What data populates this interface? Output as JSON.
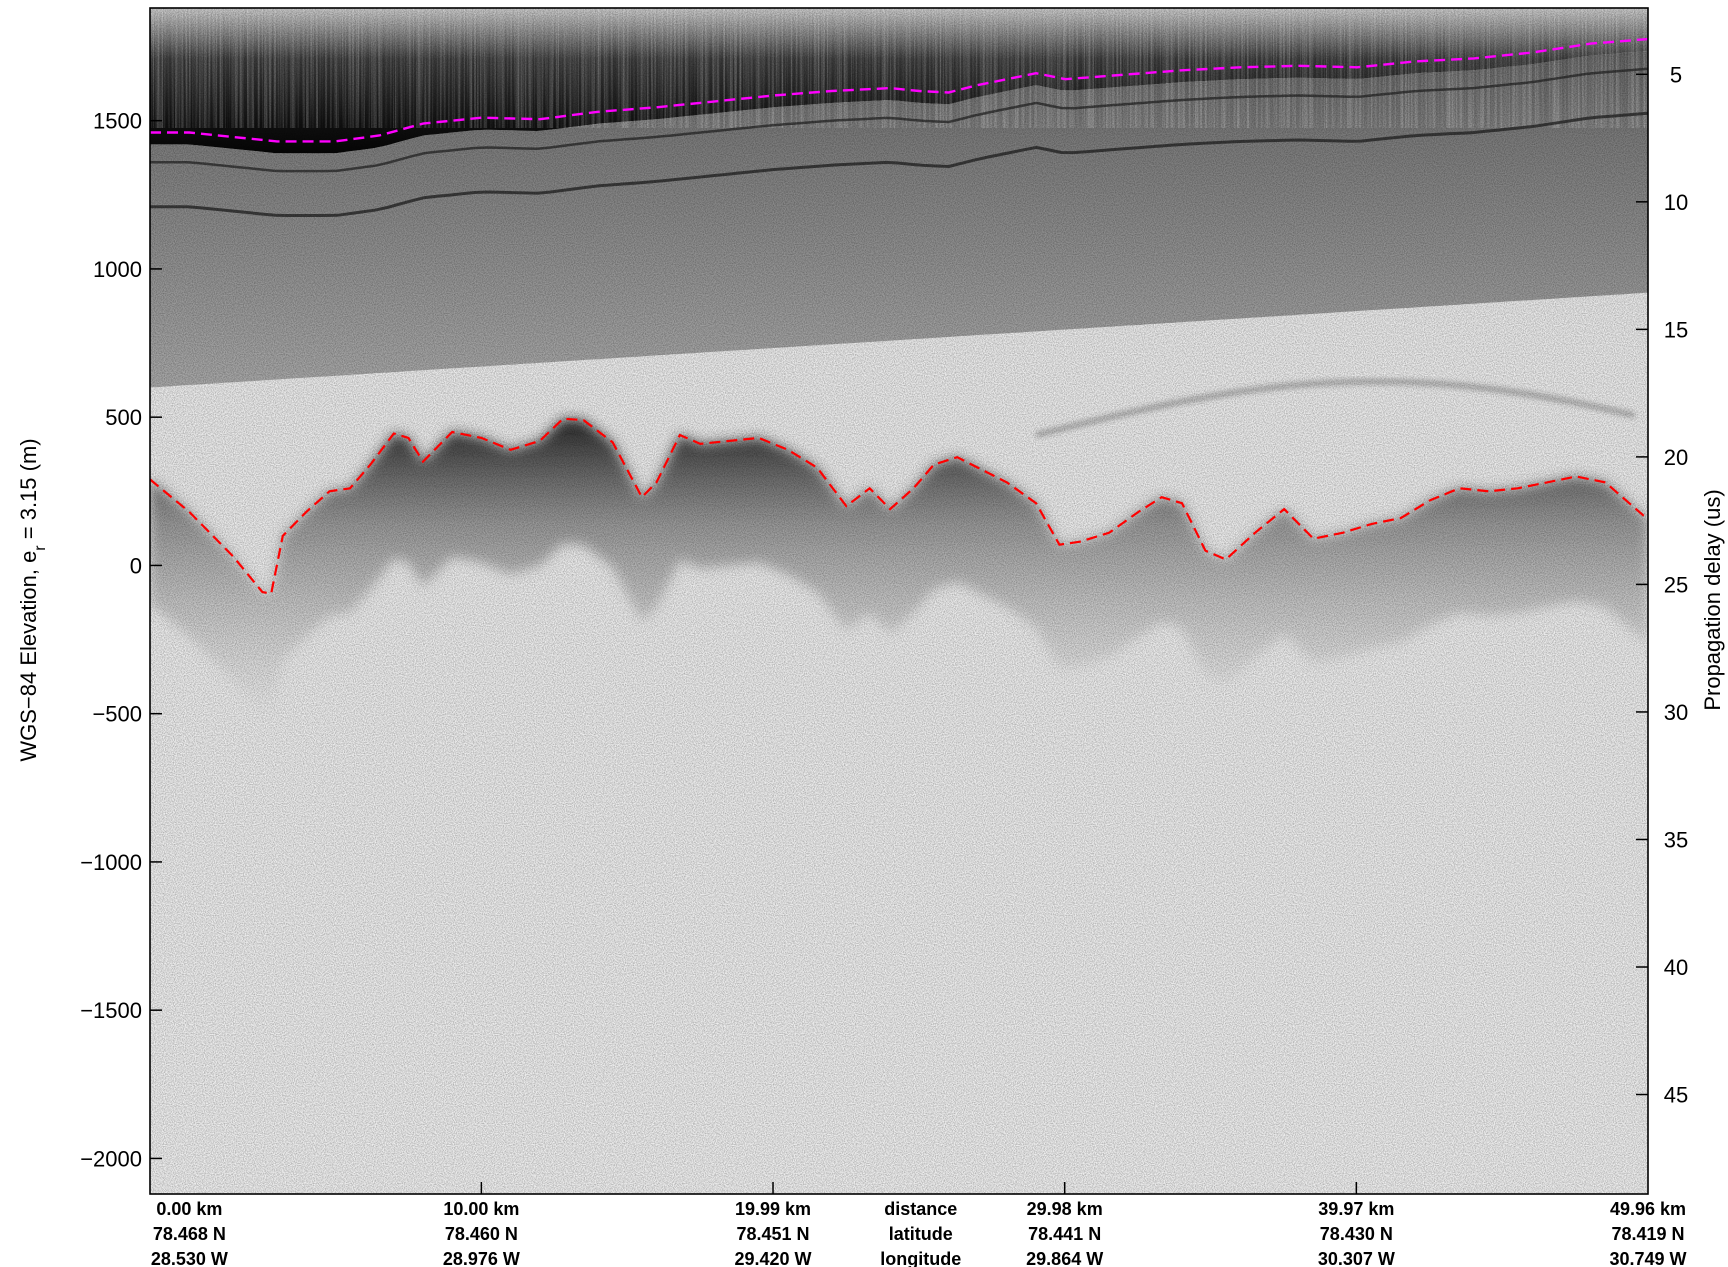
{
  "chart_data": {
    "type": "radargram",
    "ylabel_left": "WGS−84 Elevation, e",
    "ylabel_left_sub": "r",
    "ylabel_left_tail": " = 3.15 (m)",
    "ylabel_right": "Propagation delay (us)",
    "ylim_left": [
      -2120,
      1880
    ],
    "yticks_left": [
      1500,
      1000,
      500,
      0,
      -500,
      -1000,
      -1500,
      -2000
    ],
    "ytick_labels_left": [
      "1500",
      "1000",
      "500",
      "0",
      "−500",
      "−1000",
      "−1500",
      "−2000"
    ],
    "yticks_right": [
      5,
      10,
      15,
      20,
      25,
      30,
      35,
      40,
      45
    ],
    "ytick_labels_right": [
      "5",
      "10",
      "15",
      "20",
      "25",
      "30",
      "35",
      "40",
      "45"
    ],
    "delay_at_top_us": 2.4,
    "delay_at_bottom_us": 48.9,
    "xlim_km": [
      -1.35,
      49.96
    ],
    "x_columns": [
      {
        "distance": "0.00 km",
        "latitude": "78.468 N",
        "longitude": "28.530 W"
      },
      {
        "distance": "10.00 km",
        "latitude": "78.460 N",
        "longitude": "28.976 W"
      },
      {
        "distance": "19.99 km",
        "latitude": "78.451 N",
        "longitude": "29.420 W"
      },
      {
        "distance": "29.98 km",
        "latitude": "78.441 N",
        "longitude": "29.864 W"
      },
      {
        "distance": "39.97 km",
        "latitude": "78.430 N",
        "longitude": "30.307 W"
      },
      {
        "distance": "49.96 km",
        "latitude": "78.419 N",
        "longitude": "30.749 W"
      }
    ],
    "x_column_km": [
      0,
      10,
      19.99,
      29.98,
      39.97,
      49.96
    ],
    "row_labels": {
      "distance": "distance",
      "latitude": "latitude",
      "longitude": "longitude"
    },
    "row_labels_km": 25.05,
    "series": [
      {
        "line_style": "dashed",
        "color": "#ff00ff",
        "x_km": [
          -1.35,
          0,
          1.5,
          3,
          5,
          6.5,
          8,
          10,
          12,
          14,
          16,
          18,
          20,
          22,
          24,
          25,
          26,
          27,
          28,
          29,
          30,
          32,
          34,
          36,
          38,
          40,
          42,
          44,
          46,
          48,
          49.96
        ],
        "elevation_m": [
          1460,
          1460,
          1445,
          1430,
          1430,
          1450,
          1490,
          1510,
          1505,
          1530,
          1545,
          1565,
          1585,
          1600,
          1610,
          1600,
          1595,
          1620,
          1640,
          1660,
          1640,
          1655,
          1670,
          1680,
          1685,
          1680,
          1700,
          1710,
          1730,
          1760,
          1775
        ]
      },
      {
        "line_style": "dashed",
        "color": "#ff0000",
        "x_km": [
          -1.35,
          0,
          1.5,
          2.5,
          2.8,
          3.2,
          4,
          4.8,
          5.5,
          6.2,
          7,
          7.5,
          8,
          9,
          10,
          11,
          12,
          12.8,
          13.5,
          14.5,
          15.5,
          16,
          16.8,
          17.5,
          18.5,
          19.5,
          20.5,
          21.5,
          22.5,
          23.3,
          24,
          24.8,
          25.5,
          26.3,
          27,
          28,
          29,
          29.8,
          30.5,
          31.5,
          32.5,
          33.3,
          34,
          34.8,
          35.5,
          36.5,
          37.5,
          38.5,
          39.5,
          40.5,
          41.5,
          42.5,
          43.5,
          44.5,
          45.5,
          46.5,
          47.5,
          48.5,
          49.96
        ],
        "elevation_m": [
          290,
          180,
          30,
          -90,
          -95,
          100,
          180,
          250,
          260,
          340,
          445,
          430,
          350,
          450,
          430,
          390,
          420,
          495,
          490,
          415,
          230,
          280,
          440,
          410,
          420,
          430,
          390,
          330,
          200,
          260,
          190,
          260,
          340,
          365,
          330,
          280,
          210,
          70,
          80,
          110,
          180,
          230,
          210,
          50,
          20,
          110,
          190,
          90,
          110,
          140,
          160,
          220,
          260,
          250,
          260,
          280,
          300,
          280,
          155
        ]
      }
    ]
  }
}
